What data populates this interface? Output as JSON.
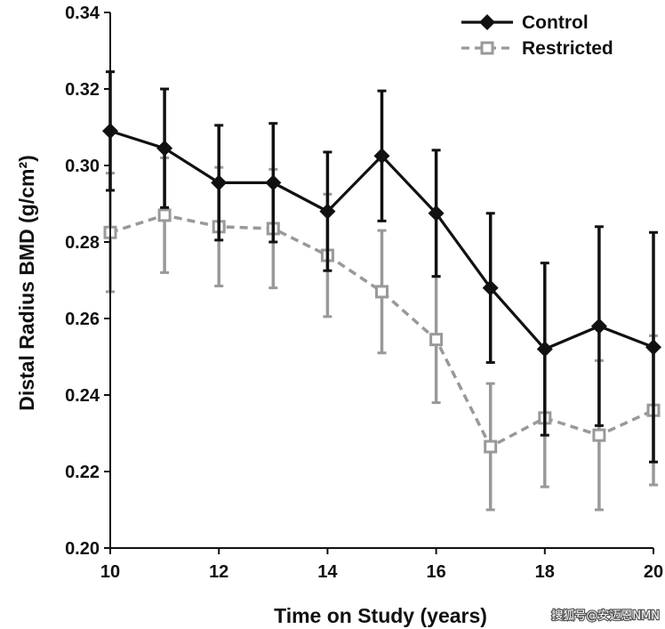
{
  "chart_data": {
    "type": "line",
    "title": "",
    "xlabel": "Time on Study (years)",
    "ylabel": "Distal Radius BMD (g/cm²)",
    "xlim": [
      10,
      20
    ],
    "ylim": [
      0.2,
      0.34
    ],
    "xticks": [
      "10",
      "12",
      "14",
      "16",
      "18",
      "20"
    ],
    "yticks": [
      "0.20",
      "0.22",
      "0.24",
      "0.26",
      "0.28",
      "0.30",
      "0.32",
      "0.34"
    ],
    "x": [
      10,
      11,
      12,
      13,
      14,
      15,
      16,
      17,
      18,
      19,
      20
    ],
    "series": [
      {
        "name": "Control",
        "color": "#111111",
        "marker": "diamond",
        "line": "solid",
        "values": [
          0.309,
          0.3045,
          0.2955,
          0.2955,
          0.288,
          0.3025,
          0.2875,
          0.268,
          0.252,
          0.258,
          0.2525
        ],
        "error": [
          0.0155,
          0.0155,
          0.015,
          0.0155,
          0.0155,
          0.017,
          0.0165,
          0.0195,
          0.0225,
          0.026,
          0.03
        ]
      },
      {
        "name": "Restricted",
        "color": "#999999",
        "marker": "square-open",
        "line": "dashed",
        "values": [
          0.2825,
          0.287,
          0.284,
          0.2835,
          0.2765,
          0.267,
          0.2545,
          0.2265,
          0.234,
          0.2295,
          0.236
        ],
        "error": [
          0.0155,
          0.015,
          0.0155,
          0.0155,
          0.016,
          0.016,
          0.0165,
          0.0165,
          0.018,
          0.0195,
          0.0195
        ]
      }
    ],
    "grid": false,
    "legend_position": "top-right"
  },
  "watermark": "搜狐号@安迈恩NMN"
}
